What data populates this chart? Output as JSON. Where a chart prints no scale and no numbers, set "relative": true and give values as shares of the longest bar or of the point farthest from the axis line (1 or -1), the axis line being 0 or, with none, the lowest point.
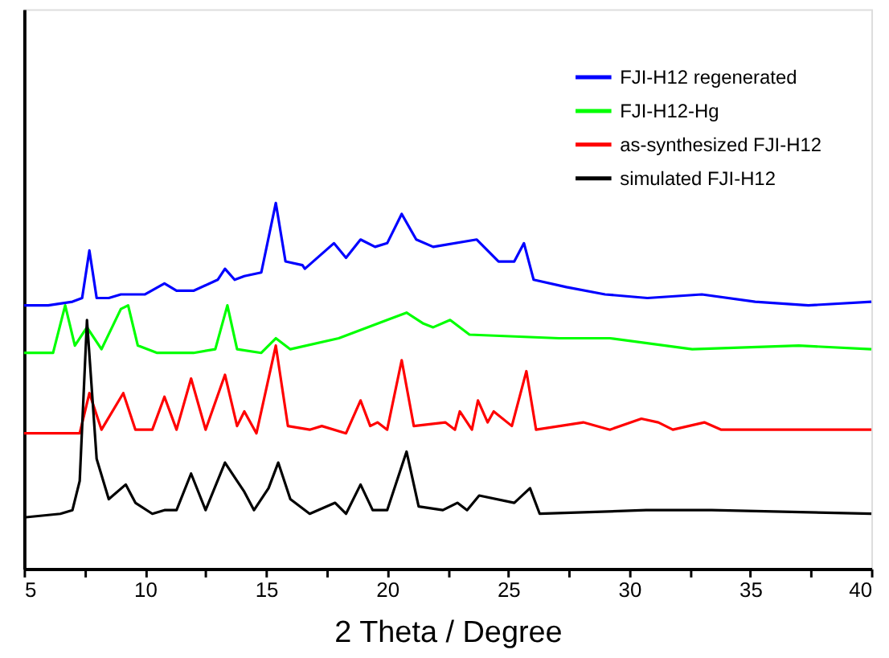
{
  "chart_data": {
    "type": "line",
    "xlabel": "2 Theta / Degree",
    "relative": true,
    "xlim": [
      5,
      40
    ],
    "xticks": [
      5,
      {
        "value": 7.5,
        "label": null
      },
      10,
      {
        "value": 12.5,
        "label": null
      },
      15,
      {
        "value": 17.5,
        "label": null
      },
      20,
      {
        "value": 22.5,
        "label": null
      },
      25,
      {
        "value": 27.5,
        "label": null
      },
      30,
      {
        "value": 32.5,
        "label": null
      },
      35,
      {
        "value": 37.5,
        "label": null
      },
      40
    ],
    "grid": false,
    "legend": "top right",
    "marker": "none",
    "line_style": "solid",
    "series": [
      {
        "name": "FJI-H12 regenerated",
        "color": "#0000ff",
        "x": [
          5,
          6,
          7,
          7.4,
          7.7,
          8.0,
          8.5,
          9,
          10,
          10.8,
          11.3,
          12,
          13,
          13.3,
          13.7,
          14.1,
          14.8,
          15.4,
          15.8,
          16.5,
          16.6,
          17.8,
          18.3,
          18.9,
          19.5,
          20.0,
          20.6,
          21.2,
          21.9,
          23.7,
          24.6,
          25.25,
          25.65,
          26.05,
          27.4,
          29.0,
          30.75,
          33.0,
          35.2,
          37.4,
          40
        ],
        "values": [
          0.72,
          0.72,
          0.73,
          0.74,
          0.87,
          0.74,
          0.74,
          0.75,
          0.75,
          0.78,
          0.76,
          0.76,
          0.79,
          0.82,
          0.79,
          0.8,
          0.81,
          1.0,
          0.84,
          0.83,
          0.82,
          0.89,
          0.85,
          0.9,
          0.88,
          0.89,
          0.97,
          0.9,
          0.88,
          0.9,
          0.84,
          0.84,
          0.89,
          0.79,
          0.77,
          0.75,
          0.74,
          0.75,
          0.73,
          0.72,
          0.73
        ]
      },
      {
        "name": "FJI-H12-Hg",
        "color": "#00ff00",
        "x": [
          5,
          6.2,
          6.7,
          7.1,
          7.6,
          8.2,
          9.0,
          9.3,
          9.7,
          10.5,
          12,
          12.9,
          13.4,
          13.8,
          14.8,
          15.4,
          16,
          18,
          20,
          20.8,
          21.5,
          21.9,
          22.6,
          23.4,
          27.1,
          29.2,
          32.6,
          37.0,
          40
        ],
        "values": [
          0.59,
          0.59,
          0.72,
          0.61,
          0.66,
          0.6,
          0.71,
          0.72,
          0.61,
          0.59,
          0.59,
          0.6,
          0.72,
          0.6,
          0.59,
          0.63,
          0.6,
          0.63,
          0.68,
          0.7,
          0.67,
          0.66,
          0.68,
          0.64,
          0.63,
          0.63,
          0.6,
          0.61,
          0.6
        ]
      },
      {
        "name": "as-synthesized FJI-H12",
        "color": "#ff0000",
        "x": [
          5,
          7.3,
          7.7,
          8.2,
          9.1,
          9.6,
          10.3,
          10.8,
          11.3,
          11.9,
          12.5,
          13.3,
          13.8,
          14.1,
          14.6,
          15.4,
          15.9,
          16.8,
          17.3,
          18.3,
          18.9,
          19.3,
          19.6,
          20.0,
          20.6,
          21.1,
          22.4,
          22.8,
          23.0,
          23.5,
          23.75,
          24.15,
          24.4,
          25.15,
          25.75,
          26.15,
          28.1,
          29.2,
          30.5,
          31.2,
          31.8,
          33.1,
          33.8,
          40
        ],
        "values": [
          0.37,
          0.37,
          0.48,
          0.38,
          0.48,
          0.38,
          0.38,
          0.47,
          0.38,
          0.52,
          0.38,
          0.53,
          0.39,
          0.43,
          0.37,
          0.61,
          0.39,
          0.38,
          0.39,
          0.37,
          0.46,
          0.39,
          0.4,
          0.38,
          0.57,
          0.39,
          0.4,
          0.38,
          0.43,
          0.38,
          0.46,
          0.4,
          0.43,
          0.39,
          0.54,
          0.38,
          0.4,
          0.38,
          0.41,
          0.4,
          0.38,
          0.4,
          0.38,
          0.38
        ]
      },
      {
        "name": "simulated FJI-H12",
        "color": "#000000",
        "x": [
          5,
          6.5,
          7.0,
          7.3,
          7.6,
          8.0,
          8.5,
          9.2,
          9.6,
          10.3,
          10.8,
          11.3,
          11.9,
          12.5,
          13.3,
          13.8,
          14.1,
          14.5,
          15.1,
          15.5,
          16.0,
          16.8,
          17.85,
          18.3,
          18.9,
          19.4,
          20.0,
          20.8,
          21.3,
          22.3,
          22.9,
          23.3,
          23.8,
          25.25,
          25.9,
          26.3,
          30.7,
          33.4,
          40
        ],
        "values": [
          0.14,
          0.15,
          0.16,
          0.24,
          0.68,
          0.3,
          0.19,
          0.23,
          0.18,
          0.15,
          0.16,
          0.16,
          0.26,
          0.16,
          0.29,
          0.24,
          0.21,
          0.16,
          0.22,
          0.29,
          0.19,
          0.15,
          0.18,
          0.15,
          0.23,
          0.16,
          0.16,
          0.32,
          0.17,
          0.16,
          0.18,
          0.16,
          0.2,
          0.18,
          0.22,
          0.15,
          0.16,
          0.16,
          0.15
        ]
      }
    ]
  }
}
